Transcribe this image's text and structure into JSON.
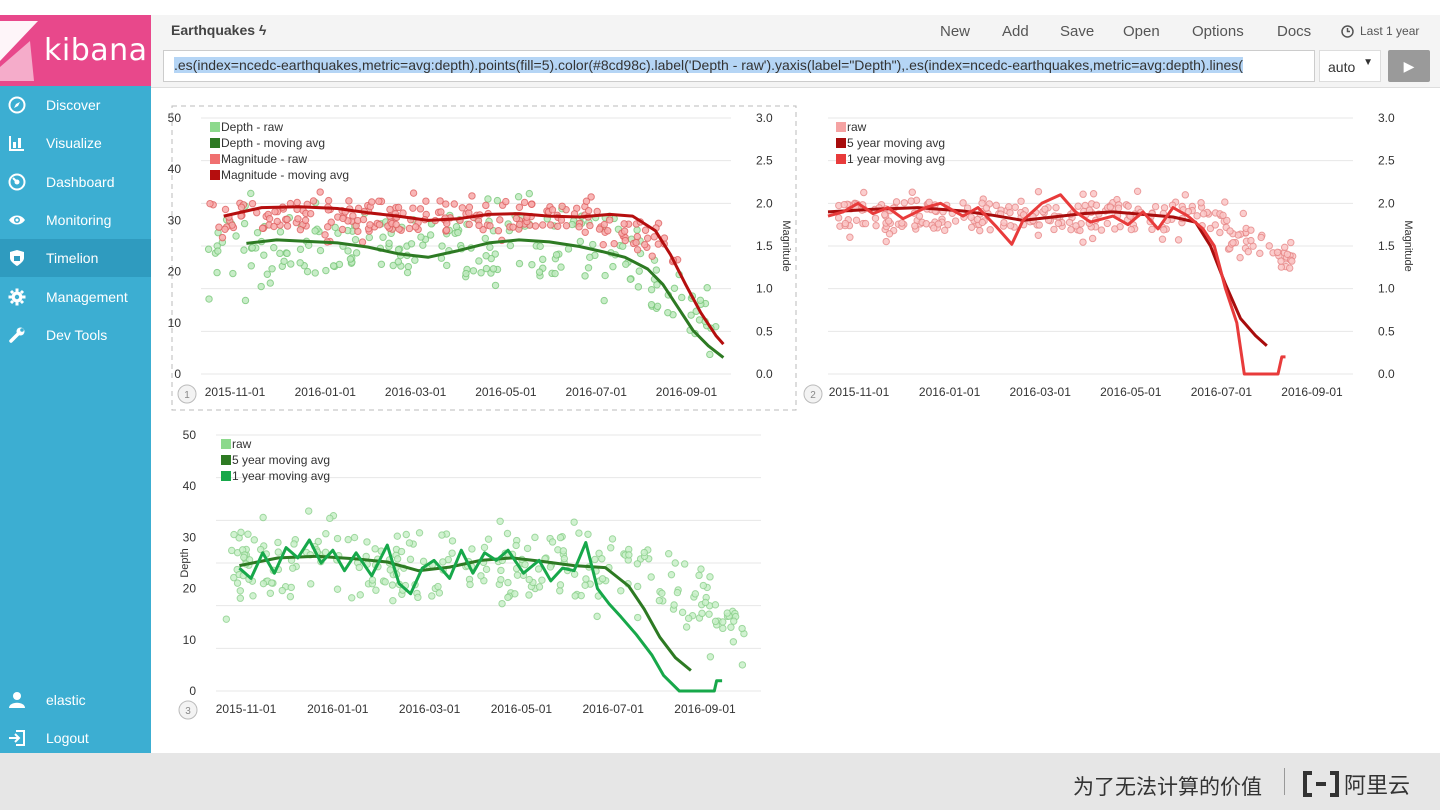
{
  "app": {
    "logo": "kibana",
    "title": "Earthquakes"
  },
  "nav": [
    {
      "label": "Discover",
      "icon": "compass-icon"
    },
    {
      "label": "Visualize",
      "icon": "bar-chart-icon"
    },
    {
      "label": "Dashboard",
      "icon": "gauge-icon"
    },
    {
      "label": "Monitoring",
      "icon": "eye-icon"
    },
    {
      "label": "Timelion",
      "icon": "shield-icon",
      "active": true
    },
    {
      "label": "Management",
      "icon": "gear-icon"
    },
    {
      "label": "Dev Tools",
      "icon": "wrench-icon"
    }
  ],
  "user": {
    "name": "elastic",
    "logout": "Logout"
  },
  "menu": {
    "new": "New",
    "add": "Add",
    "save": "Save",
    "open": "Open",
    "options": "Options",
    "docs": "Docs",
    "time": "Last 1 year"
  },
  "expression": ".es(index=ncedc-earthquakes,metric=avg:depth).points(fill=5).color(#8cd98c).label('Depth - raw').yaxis(label=\"Depth\"),.es(index=ncedc-earthquakes,metric=avg:depth).lines(",
  "interval": "auto",
  "footer": {
    "slogan": "为了无法计算的价值",
    "brand": "阿里云"
  },
  "colors": {
    "depth_raw": "#8cd98c",
    "depth_avg": "#2d7a23",
    "depth_1y": "#17a84a",
    "mag_raw": "#f07070",
    "mag_avg": "#b50e0e",
    "mag_5y": "#a80d0d",
    "mag_1y": "#e83b3b",
    "sidebar": "#3caed2",
    "logo": "#e8488b"
  },
  "chart_data": [
    {
      "type": "scatter",
      "panel": "1",
      "legend": [
        "Depth - raw",
        "Depth - moving avg",
        "Magnitude - raw",
        "Magnitude - moving avg"
      ],
      "x_ticks": [
        "2015-11-01",
        "2016-01-01",
        "2016-03-01",
        "2016-05-01",
        "2016-07-01",
        "2016-09-01"
      ],
      "y_ticks": [
        "50",
        "40",
        "30",
        "20",
        "10",
        "0"
      ],
      "y2_ticks": [
        "3.0",
        "2.5",
        "2.0",
        "1.5",
        "1.0",
        "0.5",
        "0.0"
      ],
      "ylim": [
        0,
        50
      ],
      "y2lim": [
        0,
        3
      ],
      "y2label": "Magnitude",
      "series": [
        {
          "name": "Depth - moving avg",
          "axis": 1,
          "values": [
            [
              60,
              25.5
            ],
            [
              100,
              26.2
            ],
            [
              140,
              25.9
            ],
            [
              180,
              25.6
            ],
            [
              220,
              24.8
            ],
            [
              260,
              23.5
            ],
            [
              300,
              22.8
            ],
            [
              340,
              24.1
            ],
            [
              380,
              25.6
            ],
            [
              420,
              26.2
            ],
            [
              460,
              25.8
            ],
            [
              500,
              24.9
            ],
            [
              530,
              23.9
            ],
            [
              560,
              22.8
            ],
            [
              590,
              20.5
            ],
            [
              610,
              17.5
            ],
            [
              630,
              13.0
            ],
            [
              650,
              8.5
            ],
            [
              670,
              5.5
            ],
            [
              690,
              3.2
            ]
          ]
        },
        {
          "name": "Magnitude - moving avg",
          "axis": 2,
          "values": [
            [
              30,
              1.85
            ],
            [
              80,
              1.95
            ],
            [
              130,
              1.96
            ],
            [
              180,
              1.94
            ],
            [
              220,
              1.89
            ],
            [
              260,
              1.85
            ],
            [
              300,
              1.8
            ],
            [
              340,
              1.82
            ],
            [
              380,
              1.87
            ],
            [
              420,
              1.88
            ],
            [
              460,
              1.85
            ],
            [
              500,
              1.84
            ],
            [
              540,
              1.87
            ],
            [
              570,
              1.85
            ],
            [
              600,
              1.68
            ],
            [
              620,
              1.4
            ],
            [
              640,
              1.05
            ],
            [
              660,
              0.72
            ],
            [
              680,
              0.45
            ],
            [
              690,
              0.35
            ]
          ]
        }
      ]
    },
    {
      "type": "line",
      "panel": "2",
      "legend": [
        "raw",
        "5 year moving avg",
        "1 year moving avg"
      ],
      "x_ticks": [
        "2015-11-01",
        "2016-01-01",
        "2016-03-01",
        "2016-05-01",
        "2016-07-01",
        "2016-09-01"
      ],
      "y2_ticks": [
        "3.0",
        "2.5",
        "2.0",
        "1.5",
        "1.0",
        "0.5",
        "0.0"
      ],
      "y2lim": [
        0,
        3
      ],
      "y2label": "Magnitude",
      "series": [
        {
          "name": "5 year moving avg",
          "values": [
            [
              0,
              1.9
            ],
            [
              60,
              1.93
            ],
            [
              120,
              1.95
            ],
            [
              180,
              1.91
            ],
            [
              220,
              1.86
            ],
            [
              260,
              1.8
            ],
            [
              300,
              1.84
            ],
            [
              340,
              1.88
            ],
            [
              380,
              1.9
            ],
            [
              420,
              1.87
            ],
            [
              460,
              1.84
            ],
            [
              490,
              1.78
            ],
            [
              510,
              1.5
            ],
            [
              530,
              1.05
            ],
            [
              550,
              0.65
            ],
            [
              570,
              0.45
            ],
            [
              585,
              0.33
            ]
          ]
        },
        {
          "name": "1 year moving avg",
          "values": [
            [
              0,
              1.85
            ],
            [
              20,
              1.9
            ],
            [
              40,
              2.0
            ],
            [
              60,
              1.88
            ],
            [
              80,
              1.95
            ],
            [
              100,
              1.82
            ],
            [
              130,
              1.95
            ],
            [
              150,
              2.0
            ],
            [
              180,
              1.85
            ],
            [
              200,
              1.95
            ],
            [
              225,
              1.72
            ],
            [
              245,
              1.52
            ],
            [
              260,
              1.8
            ],
            [
              285,
              2.0
            ],
            [
              310,
              2.1
            ],
            [
              330,
              1.9
            ],
            [
              350,
              1.78
            ],
            [
              380,
              1.85
            ],
            [
              400,
              1.75
            ],
            [
              420,
              1.9
            ],
            [
              440,
              1.7
            ],
            [
              460,
              1.95
            ],
            [
              480,
              1.85
            ],
            [
              500,
              1.7
            ],
            [
              515,
              1.5
            ],
            [
              530,
              1.0
            ],
            [
              545,
              0.6
            ],
            [
              555,
              0.0
            ],
            [
              590,
              0.0
            ],
            [
              600,
              0.0
            ],
            [
              605,
              0.2
            ],
            [
              610,
              0.2
            ]
          ]
        }
      ]
    },
    {
      "type": "line",
      "panel": "3",
      "legend": [
        "raw",
        "5 year moving avg",
        "1 year moving avg"
      ],
      "x_ticks": [
        "2015-11-01",
        "2016-01-01",
        "2016-03-01",
        "2016-05-01",
        "2016-07-01",
        "2016-09-01"
      ],
      "y_ticks": [
        "50",
        "40",
        "30",
        "20",
        "10",
        "0"
      ],
      "ylim": [
        0,
        50
      ],
      "ylabel": "Depth",
      "series": [
        {
          "name": "5 year moving avg",
          "values": [
            [
              30,
              24.5
            ],
            [
              80,
              26.0
            ],
            [
              130,
              26.3
            ],
            [
              180,
              25.8
            ],
            [
              220,
              25.2
            ],
            [
              260,
              23.5
            ],
            [
              300,
              24.2
            ],
            [
              340,
              25.5
            ],
            [
              380,
              26.0
            ],
            [
              420,
              25.3
            ],
            [
              460,
              24.5
            ],
            [
              500,
              24.1
            ],
            [
              530,
              20.5
            ],
            [
              550,
              16.0
            ],
            [
              570,
              10.5
            ],
            [
              590,
              6.5
            ],
            [
              610,
              4.0
            ]
          ]
        },
        {
          "name": "1 year moving avg",
          "values": [
            [
              30,
              24.0
            ],
            [
              45,
              22.0
            ],
            [
              60,
              27.0
            ],
            [
              75,
              23.0
            ],
            [
              90,
              28.0
            ],
            [
              105,
              26.0
            ],
            [
              120,
              29.5
            ],
            [
              135,
              25.0
            ],
            [
              150,
              27.5
            ],
            [
              165,
              23.5
            ],
            [
              180,
              27.0
            ],
            [
              200,
              22.5
            ],
            [
              220,
              28.5
            ],
            [
              235,
              21.0
            ],
            [
              250,
              19.0
            ],
            [
              265,
              24.0
            ],
            [
              280,
              25.5
            ],
            [
              300,
              22.0
            ],
            [
              315,
              27.5
            ],
            [
              330,
              23.0
            ],
            [
              345,
              27.0
            ],
            [
              360,
              25.5
            ],
            [
              375,
              27.5
            ],
            [
              395,
              23.0
            ],
            [
              415,
              25.5
            ],
            [
              430,
              21.5
            ],
            [
              445,
              24.0
            ],
            [
              460,
              23.5
            ],
            [
              475,
              29.0
            ],
            [
              490,
              20.0
            ],
            [
              505,
              17.0
            ],
            [
              520,
              14.5
            ],
            [
              540,
              11.0
            ],
            [
              560,
              7.0
            ],
            [
              575,
              3.0
            ],
            [
              595,
              0.0
            ],
            [
              630,
              0.0
            ],
            [
              640,
              0.0
            ],
            [
              643,
              2.0
            ],
            [
              650,
              2.0
            ]
          ]
        }
      ]
    }
  ]
}
